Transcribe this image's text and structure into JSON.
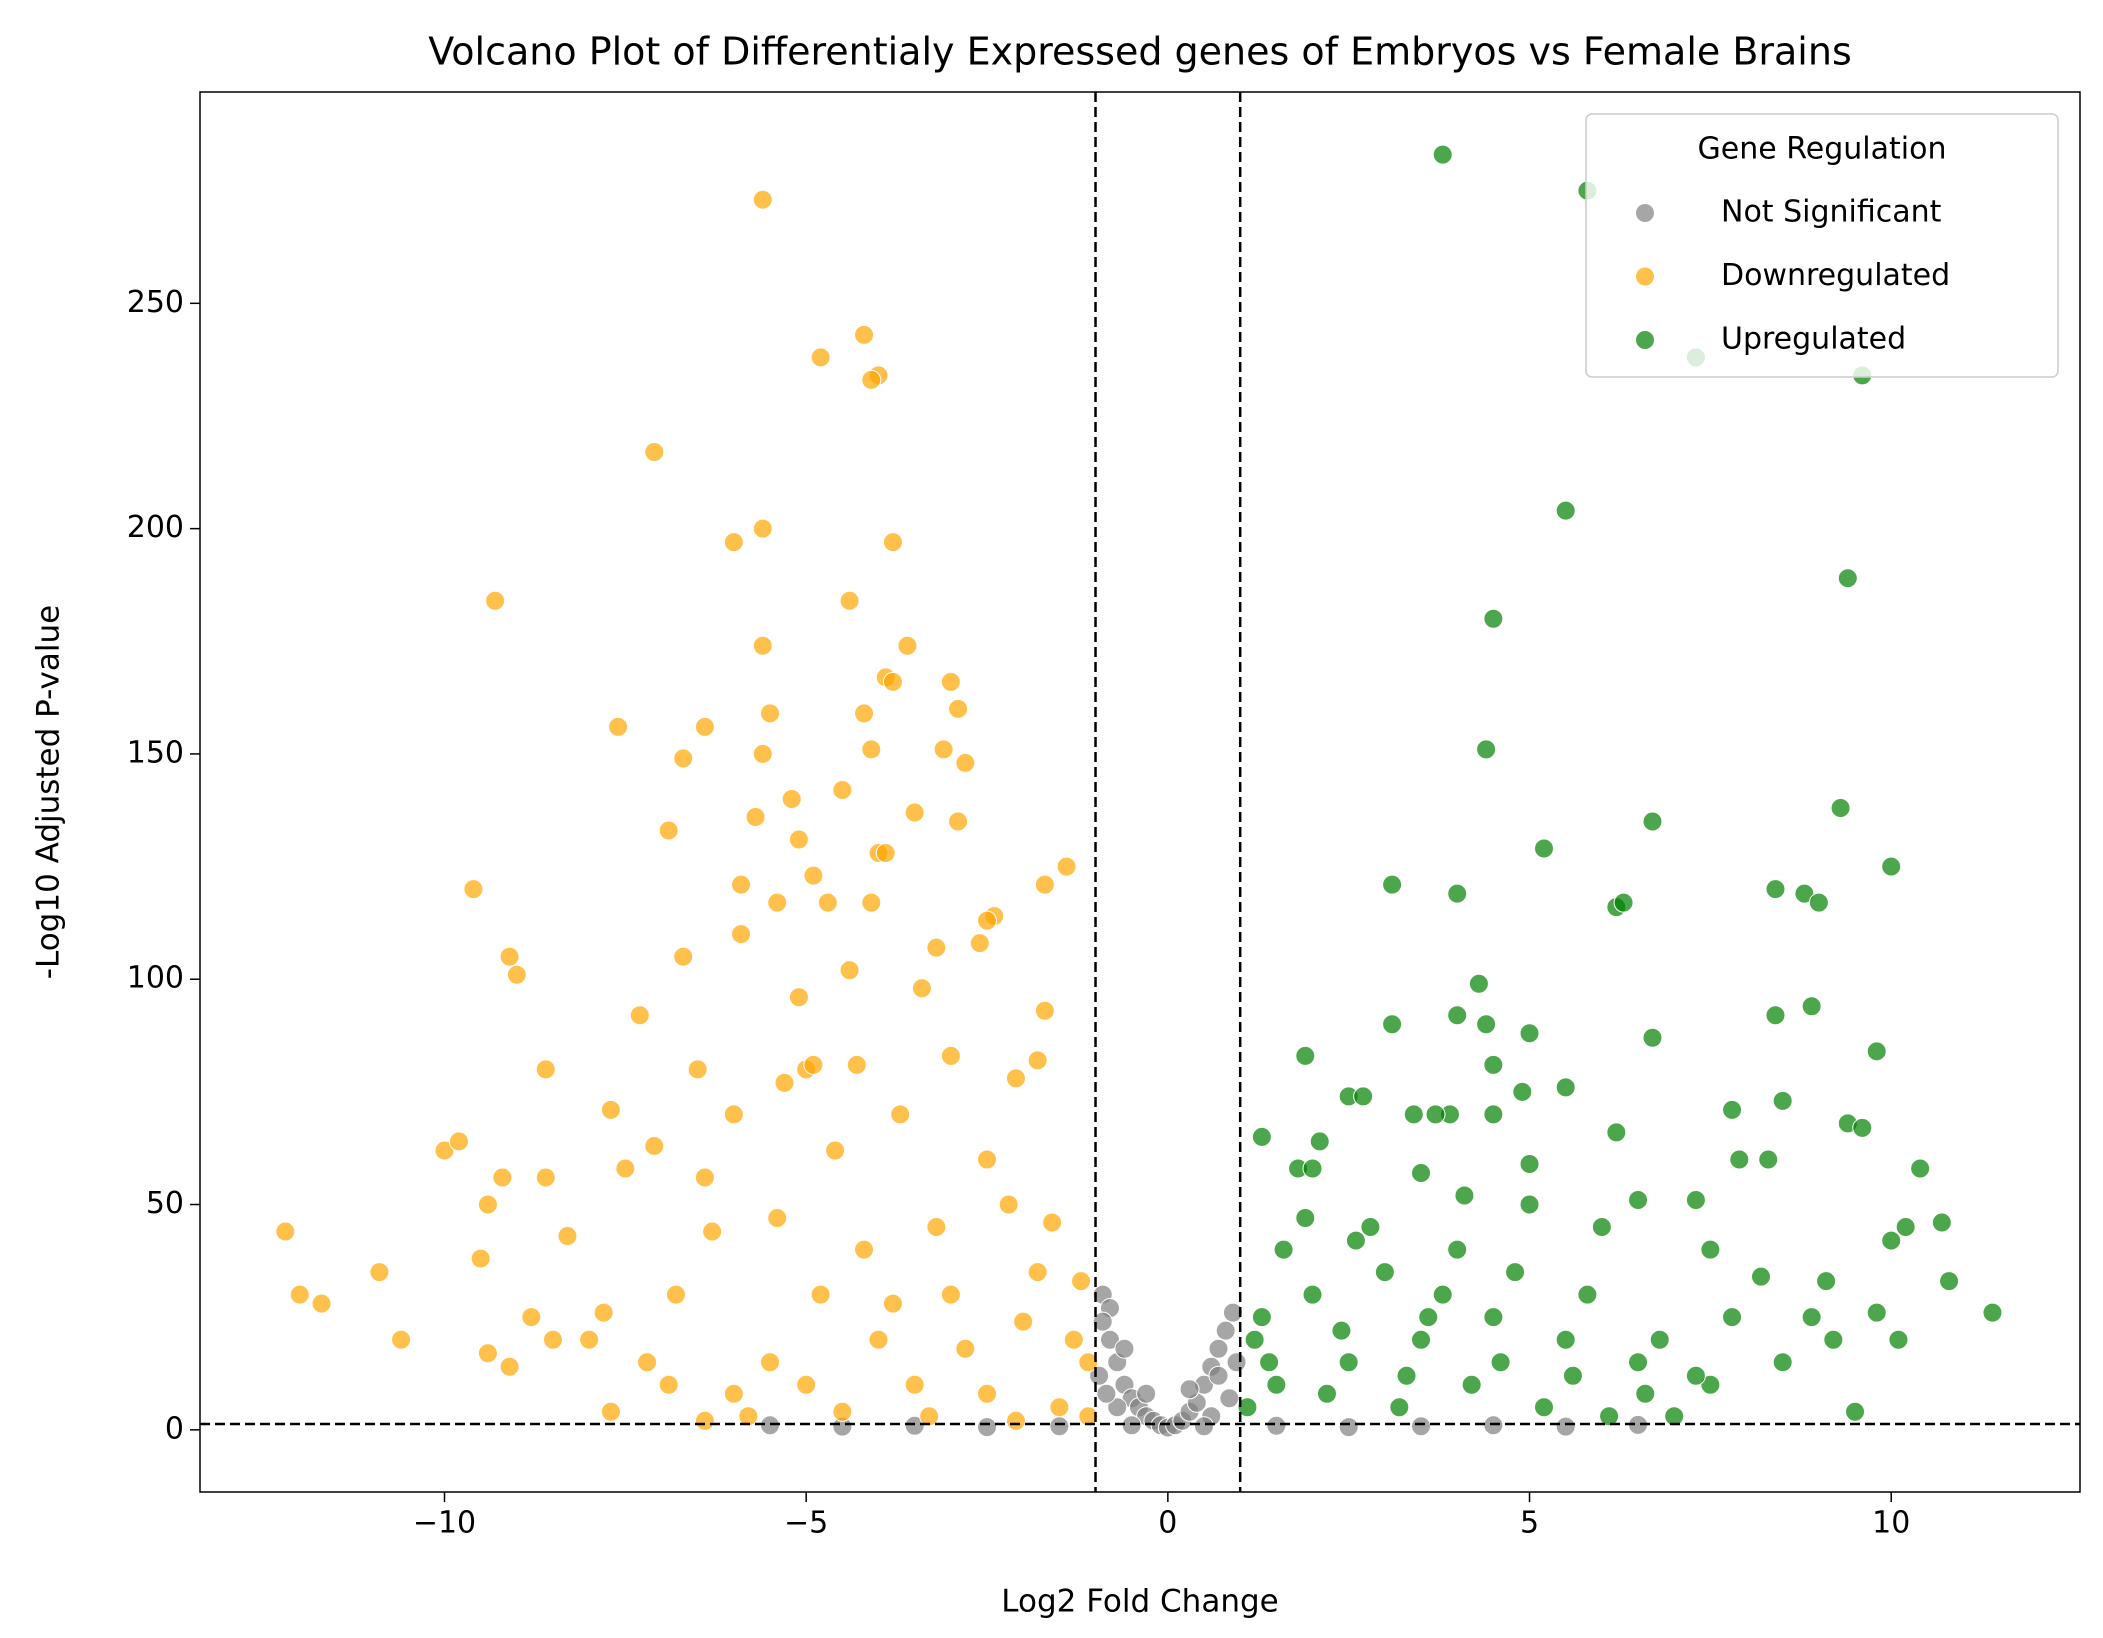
{
  "chart_data": {
    "type": "scatter",
    "title": "Volcano Plot of Differentialy Expressed genes of Embryos vs Female Brains",
    "x_label": "Log2 Fold Change",
    "y_label": "-Log10 Adjusted P-value",
    "xlim": [
      -13.38,
      12.61
    ],
    "ylim": [
      -13.8,
      296.9
    ],
    "xticks": [
      {
        "value": -10,
        "label": "−10"
      },
      {
        "value": -5,
        "label": "−5"
      },
      0,
      5,
      10
    ],
    "yticks": [
      0,
      50,
      100,
      150,
      200,
      250
    ],
    "vlines": [
      -1,
      1
    ],
    "hlines": [
      1.3
    ],
    "legend": "upper right",
    "legend_title": "Gene Regulation",
    "series": [
      {
        "name": "Not Significant",
        "color": "#808080",
        "x": [
          -0.9,
          -0.8,
          -0.9,
          -0.8,
          -0.7,
          -0.6,
          -0.5,
          -0.4,
          -0.3,
          -0.2,
          -0.1,
          0,
          0.1,
          0.2,
          0.3,
          0.4,
          0.5,
          0.6,
          0.7,
          0.8,
          0.9,
          -0.95,
          0.95,
          -0.7,
          0.6,
          -1.5,
          -2.5,
          -3.5,
          -4.5,
          -5.5,
          1.5,
          2.5,
          3.5,
          4.5,
          5.5,
          6.5,
          -0.5,
          0.5,
          -0.3,
          0.3,
          -0.6,
          0.7,
          -0.85,
          0.85
        ],
        "y": [
          30,
          27,
          24,
          20,
          15,
          10,
          7,
          5,
          3,
          2,
          1,
          0.5,
          1,
          2,
          4,
          6,
          10,
          14,
          18,
          22,
          26,
          12,
          15,
          5,
          3,
          0.8,
          0.6,
          0.9,
          0.7,
          1.0,
          0.9,
          0.6,
          0.8,
          1.0,
          0.7,
          1.1,
          1,
          0.8,
          8,
          9,
          18,
          12,
          8,
          7
        ]
      },
      {
        "name": "Downregulated",
        "color": "#ffa500",
        "x": [
          -5.6,
          -4.2,
          -4.8,
          -4.0,
          -4.1,
          -7.1,
          -5.6,
          -6.0,
          -3.8,
          -9.3,
          -4.4,
          -3.6,
          -5.6,
          -3.9,
          -3.8,
          -3.0,
          -2.9,
          -5.5,
          -4.2,
          -7.6,
          -6.4,
          -4.1,
          -3.1,
          -5.6,
          -6.7,
          -2.8,
          -5.2,
          -4.5,
          -3.5,
          -5.7,
          -2.9,
          -6.9,
          -5.1,
          -1.4,
          -4.0,
          -3.9,
          -4.9,
          -5.9,
          -1.7,
          -9.6,
          -5.4,
          -4.7,
          -4.1,
          -2.4,
          -2.5,
          -4.4,
          -9.1,
          -9.0,
          -6.7,
          -5.9,
          -3.2,
          -2.6,
          -7.3,
          -5.1,
          -3.4,
          -1.7,
          -8.6,
          -6.5,
          -5.0,
          -4.9,
          -4.3,
          -1.8,
          -10.0,
          -9.8,
          -7.7,
          -9.2,
          -8.6,
          -9.4,
          -12.2,
          -10.9,
          -12.0,
          -11.7,
          -10.6,
          -9.5,
          -8.3,
          -7.1,
          -7.5,
          -6.4,
          -6.0,
          -2.1,
          -3.0,
          -5.3,
          -6.3,
          -8.5,
          -9.4,
          -9.1,
          -8.0,
          -7.8,
          -7.7,
          -6.9,
          -6.4,
          -5.4,
          -4.6,
          -3.7,
          -2.5,
          -1.6,
          -1.2,
          -1.1,
          -2.0,
          -3.0,
          -4.0,
          -5.0,
          -6.0,
          -1.5,
          -2.5,
          -3.5,
          -4.5,
          -5.5,
          -3.2,
          -2.2,
          -4.2,
          -1.3,
          -1.8,
          -2.8,
          -3.8,
          -4.8,
          -6.8,
          -7.2,
          -8.8,
          -1.1,
          -2.1,
          -3.3,
          -5.8
        ],
        "y": [
          273,
          243,
          238,
          234,
          233,
          217,
          200,
          197,
          197,
          184,
          184,
          174,
          174,
          167,
          166,
          166,
          160,
          159,
          159,
          156,
          156,
          151,
          151,
          150,
          149,
          148,
          140,
          142,
          137,
          136,
          135,
          133,
          131,
          125,
          128,
          128,
          123,
          121,
          121,
          120,
          117,
          117,
          117,
          114,
          113,
          102,
          105,
          101,
          105,
          110,
          107,
          108,
          92,
          96,
          98,
          93,
          80,
          80,
          80,
          81,
          81,
          82,
          62,
          64,
          71,
          56,
          56,
          50,
          44,
          35,
          30,
          28,
          20,
          38,
          43,
          63,
          58,
          56,
          70,
          78,
          83,
          77,
          44,
          20,
          17,
          14,
          20,
          26,
          4,
          10,
          2,
          47,
          62,
          70,
          60,
          46,
          33,
          15,
          24,
          30,
          20,
          10,
          8,
          5,
          8,
          10,
          4,
          15,
          45,
          50,
          40,
          20,
          35,
          18,
          28,
          30,
          30,
          15,
          25,
          3,
          2,
          3,
          3
        ]
      },
      {
        "name": "Upregulated",
        "color": "#008000",
        "x": [
          3.8,
          5.8,
          7.3,
          9.6,
          5.5,
          9.4,
          4.5,
          4.4,
          6.7,
          9.3,
          5.2,
          10.0,
          3.1,
          4.0,
          6.2,
          6.3,
          8.4,
          8.8,
          9.0,
          4.3,
          3.1,
          4.0,
          4.4,
          8.4,
          8.9,
          5.0,
          6.7,
          9.8,
          1.9,
          4.5,
          2.5,
          2.7,
          4.5,
          3.9,
          5.5,
          4.9,
          9.4,
          9.6,
          1.3,
          6.2,
          7.8,
          8.5,
          3.7,
          3.4,
          2.1,
          3.5,
          4.1,
          5.0,
          7.9,
          8.3,
          10.4,
          7.3,
          6.5,
          1.8,
          2.0,
          10.7,
          10.0,
          10.2,
          11.4,
          10.8,
          9.8,
          9.5,
          8.9,
          7.5,
          6.0,
          5.0,
          4.0,
          3.0,
          2.0,
          1.2,
          1.5,
          2.5,
          3.5,
          4.5,
          5.5,
          6.5,
          7.5,
          8.5,
          9.2,
          1.1,
          2.2,
          3.2,
          4.2,
          5.2,
          6.1,
          7.0,
          1.6,
          2.8,
          3.8,
          4.8,
          5.8,
          6.8,
          7.8,
          8.2,
          1.3,
          2.4,
          3.3,
          4.6,
          5.6,
          6.6,
          7.3,
          1.9,
          2.6,
          1.4,
          3.6,
          9.1,
          10.1
        ],
        "y": [
          283,
          275,
          238,
          234,
          204,
          189,
          180,
          151,
          135,
          138,
          129,
          125,
          121,
          119,
          116,
          117,
          120,
          119,
          117,
          99,
          90,
          92,
          90,
          92,
          94,
          88,
          87,
          84,
          83,
          81,
          74,
          74,
          70,
          70,
          76,
          75,
          68,
          67,
          65,
          66,
          71,
          73,
          70,
          70,
          64,
          57,
          52,
          59,
          60,
          60,
          58,
          51,
          51,
          58,
          58,
          46,
          42,
          45,
          26,
          33,
          26,
          4,
          25,
          40,
          45,
          50,
          40,
          35,
          30,
          20,
          10,
          15,
          20,
          25,
          20,
          15,
          10,
          15,
          20,
          5,
          8,
          5,
          10,
          5,
          3,
          3,
          40,
          45,
          30,
          35,
          30,
          20,
          25,
          34,
          25,
          22,
          12,
          15,
          12,
          8,
          12,
          47,
          42,
          15,
          25,
          33,
          20
        ]
      }
    ]
  }
}
